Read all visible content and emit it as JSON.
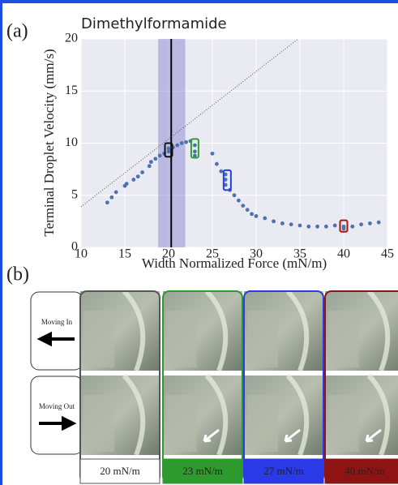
{
  "panel_labels": [
    "(a)",
    "(b)"
  ],
  "chart_data": {
    "type": "scatter",
    "title": "Dimethylformamide",
    "x_label": "Width Normalized Force (mN/m)",
    "y_label": "Terminal Droplet Velocity (mm/s)",
    "x": [
      13,
      13.5,
      14,
      15,
      15.2,
      16,
      16.5,
      17,
      17.8,
      18,
      18.5,
      19,
      19.5,
      20,
      20,
      20.5,
      21,
      21.5,
      22,
      22.5,
      23,
      23,
      23,
      25,
      25.5,
      26,
      26.5,
      26.5,
      26.5,
      27,
      27.5,
      28,
      28.5,
      29,
      29.5,
      30,
      31,
      32,
      33,
      34,
      35,
      36,
      37,
      38,
      39,
      40,
      40,
      41,
      42,
      43,
      44
    ],
    "values": [
      4.3,
      4.8,
      5.3,
      5.9,
      6.1,
      6.5,
      6.8,
      7.2,
      7.8,
      8.2,
      8.5,
      8.8,
      9.0,
      9.2,
      9.5,
      9.6,
      9.8,
      10.0,
      10.1,
      10.2,
      9.8,
      9.2,
      8.8,
      9.0,
      8.0,
      7.3,
      7.0,
      6.5,
      6.0,
      5.5,
      5.0,
      4.5,
      4.0,
      3.6,
      3.2,
      3.0,
      2.8,
      2.5,
      2.3,
      2.2,
      2.1,
      2.0,
      2.0,
      2.0,
      2.1,
      2.0,
      1.8,
      2.0,
      2.2,
      2.3,
      2.4
    ],
    "color": "#4c72b0",
    "xlim": [
      10,
      45
    ],
    "xticks": [
      10,
      15,
      20,
      25,
      30,
      35,
      40,
      45
    ],
    "ylim": [
      0,
      20
    ],
    "yticks": [
      0,
      5,
      10,
      15,
      20
    ],
    "grid": true,
    "reference_line": {
      "x": [
        10,
        34.8
      ],
      "values": [
        3.9,
        20
      ]
    },
    "marker_line": {
      "x": 20.3,
      "band": [
        18.8,
        21.9
      ]
    },
    "highlights": [
      {
        "x": 20,
        "ylim": [
          8.7,
          10.0
        ],
        "color": "#111111"
      },
      {
        "x": 23,
        "ylim": [
          8.6,
          10.4
        ],
        "color": "#2ca02c"
      },
      {
        "x": 26.7,
        "ylim": [
          5.5,
          7.4
        ],
        "color": "#1f3fe0"
      },
      {
        "x": 40,
        "ylim": [
          1.5,
          2.6
        ],
        "color": "#b01010"
      }
    ]
  },
  "panel_b": {
    "rows": [
      "Moving In",
      "Moving Out"
    ],
    "columns": [
      {
        "label": "20 mN/m",
        "color": "#ffffff",
        "border": "#555555",
        "text": "#000000"
      },
      {
        "label": "23 mN/m",
        "color": "#2e9a2e",
        "border": "#2e9a2e",
        "text": "#ffffff"
      },
      {
        "label": "27 mN/m",
        "color": "#2a3ae6",
        "border": "#2a3ae6",
        "text": "#ffffff"
      },
      {
        "label": "40 mN/m",
        "color": "#8e1414",
        "border": "#8e1414",
        "text": "#ffffff"
      }
    ]
  }
}
